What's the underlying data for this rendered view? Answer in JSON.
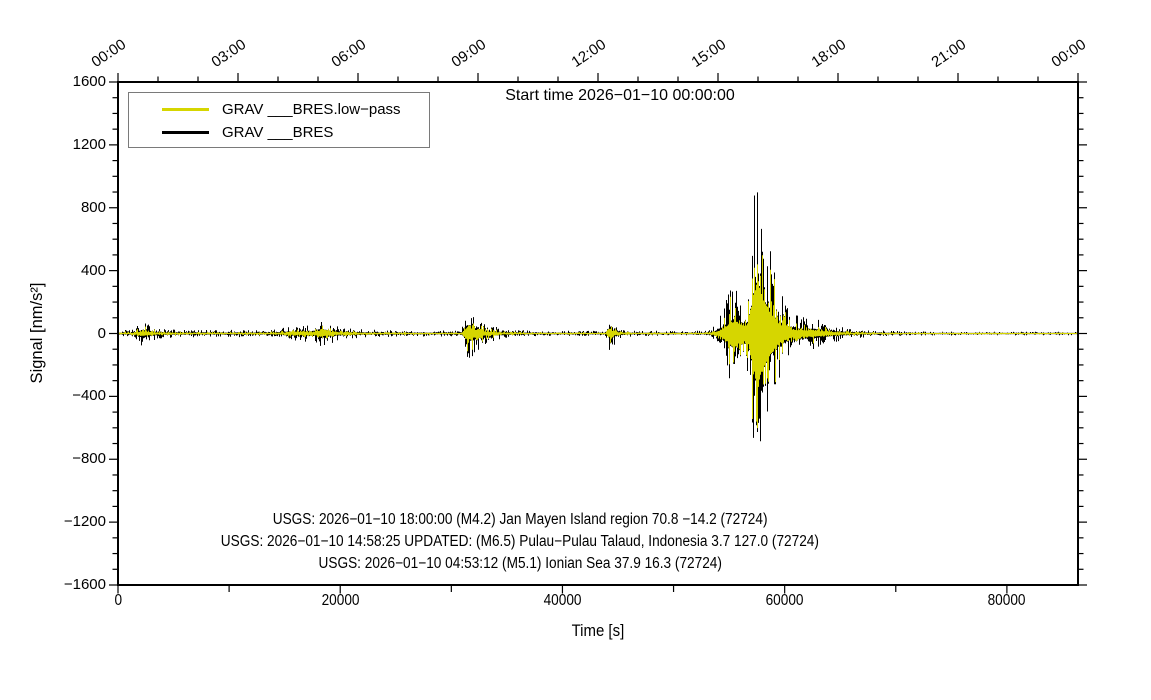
{
  "figure": {
    "title": "Start time 2026−01−10 00:00:00",
    "legend": [
      {
        "label": "GRAV ___BRES.low−pass",
        "color": "#d6d600"
      },
      {
        "label": "GRAV ___BRES",
        "color": "#000000"
      }
    ],
    "annotations": [
      "USGS: 2026−01−10 18:00:00 (M4.2) Jan Mayen Island region 70.8 −14.2 (72724)",
      "USGS: 2026−01−10 14:58:25 UPDATED: (M6.5) Pulau−Pulau Talaud, Indonesia 3.7 127.0 (72724)",
      "USGS: 2026−01−10 04:53:12 (M5.1) Ionian Sea 37.9 16.3 (72724)"
    ]
  },
  "chart_data": {
    "type": "line",
    "title": "Start time 2026−01−10 00:00:00",
    "xlabel": "Time [s]",
    "ylabel": "Signal [nm/s²]",
    "xlim": [
      0,
      86400
    ],
    "ylim": [
      -1600,
      1600
    ],
    "grid": false,
    "legend_position": "top-left-inside",
    "x_ticks_bottom": {
      "major_labels": [
        0,
        20000,
        40000,
        60000,
        80000
      ],
      "minor_step": 10000
    },
    "x_ticks_top": {
      "labels": [
        "00:00",
        "03:00",
        "06:00",
        "09:00",
        "12:00",
        "15:00",
        "18:00",
        "21:00",
        "00:00"
      ],
      "major_step_seconds": 10800,
      "minor_step_seconds": 3600
    },
    "y_ticks": {
      "major": [
        -1600,
        -1200,
        -800,
        -400,
        0,
        400,
        800,
        1200,
        1600
      ],
      "minor_step": 100
    },
    "series": [
      {
        "name": "GRAV ___BRES",
        "color": "#000000",
        "role": "raw",
        "amp_scale": 1.0
      },
      {
        "name": "GRAV ___BRES.low−pass",
        "color": "#d6d600",
        "role": "low-pass",
        "amp_scale": 0.9
      }
    ],
    "baseline_noise_envelope": [
      [
        0,
        20
      ],
      [
        20000,
        20
      ],
      [
        32000,
        16
      ],
      [
        44000,
        15
      ],
      [
        53000,
        15
      ],
      [
        54500,
        20
      ],
      [
        66000,
        11
      ],
      [
        86400,
        10
      ]
    ],
    "events": [
      {
        "t0": 2300,
        "peak_amp": 55,
        "rise_s": 400,
        "decay_s": 900
      },
      {
        "t0": 16800,
        "peak_amp": 30,
        "rise_s": 1500,
        "decay_s": 2000
      },
      {
        "t0": 18300,
        "peak_amp": 62,
        "rise_s": 350,
        "decay_s": 1100
      },
      {
        "t0": 31500,
        "peak_amp": 165,
        "rise_s": 250,
        "decay_s": 1300
      },
      {
        "t0": 44300,
        "peak_amp": 95,
        "rise_s": 180,
        "decay_s": 550
      },
      {
        "t0": 55600,
        "peak_amp": 280,
        "rise_s": 900,
        "decay_s": 2000
      },
      {
        "t0": 57600,
        "peak_amp": 1000,
        "rise_s": 400,
        "decay_s": 1200
      },
      {
        "t0": 62800,
        "peak_amp": 60,
        "rise_s": 1200,
        "decay_s": 2500
      }
    ],
    "peak_values": {
      "max": 1050,
      "min": -930
    }
  }
}
